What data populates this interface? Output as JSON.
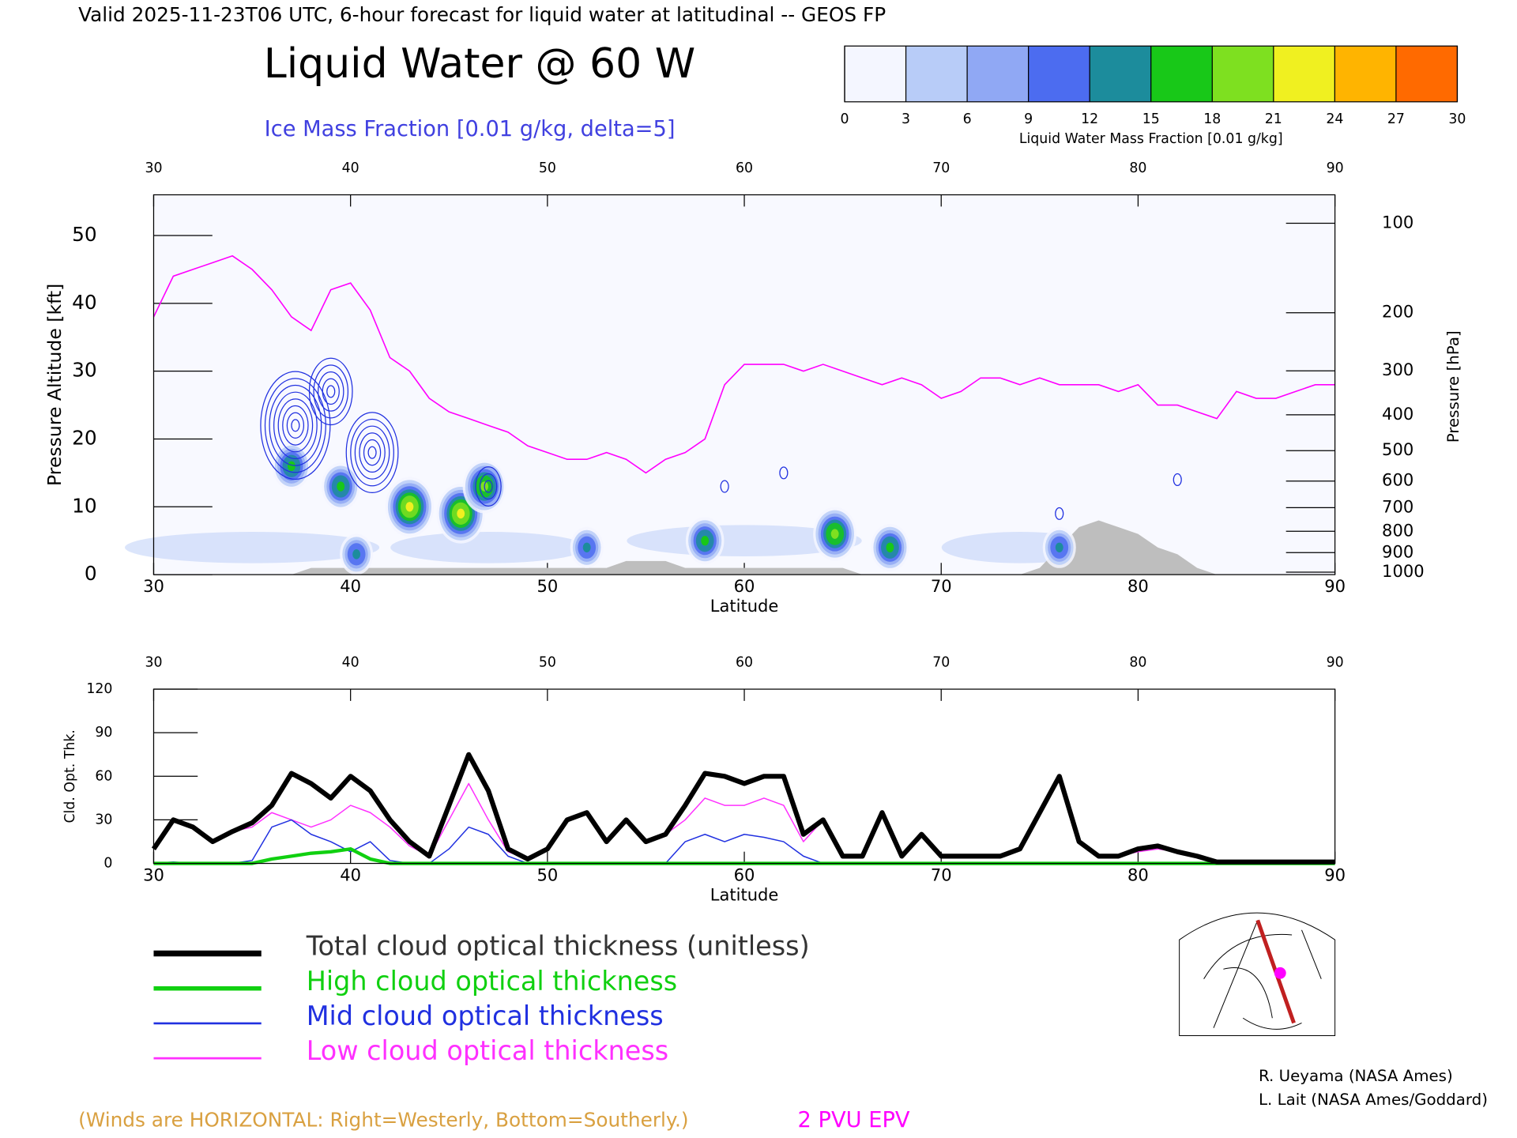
{
  "header": {
    "valid": "Valid 2025-11-23T06 UTC, 6-hour forecast for liquid water at latitudinal -- GEOS FP",
    "title": "Liquid Water @ 60 W",
    "subtitle": "Ice Mass Fraction [0.01 g/kg, delta=5]"
  },
  "chart_data": [
    {
      "type": "contour",
      "xlabel": "Latitude",
      "ylabel": "Pressure Altitude [kft]",
      "y2label": "Pressure [hPa]",
      "xlim": [
        30,
        90
      ],
      "xticks": [
        30,
        40,
        50,
        60,
        70,
        80,
        90
      ],
      "ylim": [
        0,
        56
      ],
      "yticks": [
        0,
        10,
        20,
        30,
        40,
        50
      ],
      "y2_scale": "pressure-altitude",
      "y2ticks": [
        100,
        200,
        300,
        400,
        500,
        600,
        700,
        800,
        900,
        1000
      ],
      "colorbar": {
        "label": "Liquid Water Mass Fraction [0.01 g/kg]",
        "ticks": [
          0,
          3,
          6,
          9,
          12,
          15,
          18,
          21,
          24,
          27,
          30
        ],
        "colors": [
          "#f4f6ff",
          "#b8ccf8",
          "#90a8f4",
          "#4c6cf0",
          "#1c8c9c",
          "#18c818",
          "#7ee020",
          "#f0f020",
          "#ffb400",
          "#ff6a00"
        ]
      },
      "liquid_water": [
        {
          "lat": 37,
          "alt": 16,
          "value": 15
        },
        {
          "lat": 39.5,
          "alt": 13,
          "value": 15
        },
        {
          "lat": 43,
          "alt": 10,
          "value": 21
        },
        {
          "lat": 45.6,
          "alt": 9,
          "value": 21
        },
        {
          "lat": 46.8,
          "alt": 13,
          "value": 18
        },
        {
          "lat": 40.3,
          "alt": 3,
          "value": 12
        },
        {
          "lat": 58,
          "alt": 5,
          "value": 15
        },
        {
          "lat": 64.6,
          "alt": 6,
          "value": 18
        },
        {
          "lat": 67.4,
          "alt": 4,
          "value": 16
        },
        {
          "lat": 52,
          "alt": 4,
          "value": 12
        },
        {
          "lat": 76,
          "alt": 4,
          "value": 12
        }
      ],
      "ice_contours": {
        "color": "#2030e0",
        "delta": 5,
        "maxima": [
          {
            "lat": 37.2,
            "alt": 22,
            "value": 40
          },
          {
            "lat": 39,
            "alt": 27,
            "value": 25
          },
          {
            "lat": 41.1,
            "alt": 18,
            "value": 30
          },
          {
            "lat": 47,
            "alt": 13,
            "value": 15
          },
          {
            "lat": 59,
            "alt": 13,
            "value": 5
          },
          {
            "lat": 62,
            "alt": 15,
            "value": 5
          },
          {
            "lat": 82,
            "alt": 14,
            "value": 5
          },
          {
            "lat": 76,
            "alt": 9,
            "value": 5
          }
        ]
      },
      "x": [
        30,
        31,
        32,
        33,
        34,
        35,
        36,
        37,
        38,
        39,
        40,
        41,
        42,
        43,
        44,
        45,
        46,
        47,
        48,
        49,
        50,
        51,
        52,
        53,
        54,
        55,
        56,
        57,
        58,
        59,
        60,
        61,
        62,
        63,
        64,
        65,
        66,
        67,
        68,
        69,
        70,
        71,
        72,
        73,
        74,
        75,
        76,
        77,
        78,
        79,
        80,
        81,
        82,
        83,
        84,
        85,
        86,
        87,
        88,
        89,
        90
      ],
      "terrain": {
        "color": "#bebebe",
        "values": [
          0,
          0,
          0,
          0,
          0,
          0,
          0,
          0,
          1,
          1,
          1,
          1,
          1,
          1,
          1,
          1,
          1,
          1,
          1,
          1,
          1,
          1,
          1,
          1,
          2,
          2,
          2,
          1,
          1,
          1,
          1,
          1,
          1,
          1,
          1,
          1,
          0,
          0,
          0,
          0,
          0,
          0,
          0,
          0,
          0,
          1,
          4,
          7,
          8,
          7,
          6,
          4,
          3,
          1,
          0,
          0,
          0,
          0,
          0,
          0,
          0
        ]
      },
      "series": [
        {
          "name": "2 PVU EPV",
          "color": "#ff00ff",
          "values": [
            38,
            44,
            45,
            46,
            47,
            45,
            42,
            38,
            36,
            42,
            43,
            39,
            32,
            30,
            26,
            24,
            23,
            22,
            21,
            19,
            18,
            17,
            17,
            18,
            17,
            15,
            17,
            18,
            20,
            28,
            31,
            31,
            31,
            30,
            31,
            30,
            29,
            28,
            29,
            28,
            26,
            27,
            29,
            29,
            28,
            29,
            28,
            28,
            28,
            27,
            28,
            25,
            25,
            24,
            23,
            27,
            26,
            26,
            27,
            28,
            28
          ]
        }
      ]
    },
    {
      "type": "line",
      "xlabel": "Latitude",
      "ylabel": "Cld. Opt. Thk.",
      "xlim": [
        30,
        90
      ],
      "xticks": [
        30,
        40,
        50,
        60,
        70,
        80,
        90
      ],
      "ylim": [
        0,
        120
      ],
      "yticks": [
        0,
        30,
        60,
        90,
        120
      ],
      "x": [
        30,
        31,
        32,
        33,
        34,
        35,
        36,
        37,
        38,
        39,
        40,
        41,
        42,
        43,
        44,
        45,
        46,
        47,
        48,
        49,
        50,
        51,
        52,
        53,
        54,
        55,
        56,
        57,
        58,
        59,
        60,
        61,
        62,
        63,
        64,
        65,
        66,
        67,
        68,
        69,
        70,
        71,
        72,
        73,
        74,
        75,
        76,
        77,
        78,
        79,
        80,
        81,
        82,
        83,
        84,
        85,
        86,
        87,
        88,
        89,
        90
      ],
      "series": [
        {
          "name": "Total cloud optical thickness (unitless)",
          "color": "#000000",
          "width": 5,
          "values": [
            10,
            30,
            25,
            15,
            22,
            28,
            40,
            62,
            55,
            45,
            60,
            50,
            30,
            15,
            5,
            40,
            75,
            50,
            10,
            3,
            10,
            30,
            35,
            15,
            30,
            15,
            20,
            40,
            62,
            60,
            55,
            60,
            60,
            20,
            30,
            5,
            5,
            35,
            5,
            20,
            5,
            5,
            5,
            5,
            10,
            35,
            60,
            15,
            5,
            5,
            10,
            12,
            8,
            5,
            1,
            1,
            1,
            1,
            1,
            1,
            1
          ]
        },
        {
          "name": "High cloud optical thickness",
          "color": "#10d010",
          "width": 3.5,
          "values": [
            0,
            0,
            0,
            0,
            0,
            0,
            3,
            5,
            7,
            8,
            10,
            3,
            0,
            0,
            0,
            0,
            0,
            0,
            0,
            0,
            0,
            0,
            0,
            0,
            0,
            0,
            0,
            0,
            0,
            0,
            0,
            0,
            0,
            0,
            0,
            0,
            0,
            0,
            0,
            0,
            0,
            0,
            0,
            0,
            0,
            0,
            0,
            0,
            0,
            0,
            0,
            0,
            0,
            0,
            0,
            0,
            0,
            0,
            0,
            0,
            0
          ]
        },
        {
          "name": "Mid cloud optical thickness",
          "color": "#2030e0",
          "width": 1.2,
          "values": [
            0,
            1,
            0,
            0,
            0,
            2,
            25,
            30,
            20,
            15,
            8,
            15,
            2,
            0,
            0,
            10,
            25,
            20,
            5,
            0,
            0,
            0,
            0,
            0,
            0,
            0,
            0,
            15,
            20,
            15,
            20,
            18,
            15,
            5,
            0,
            0,
            0,
            0,
            0,
            0,
            0,
            0,
            0,
            0,
            0,
            0,
            0,
            0,
            0,
            0,
            0,
            0,
            0,
            0,
            0,
            0,
            0,
            0,
            0,
            0,
            0
          ]
        },
        {
          "name": "Low cloud optical thickness",
          "color": "#ff30ff",
          "width": 1.2,
          "values": [
            10,
            30,
            25,
            15,
            22,
            25,
            35,
            30,
            25,
            30,
            40,
            35,
            25,
            12,
            5,
            30,
            55,
            30,
            8,
            3,
            10,
            30,
            35,
            15,
            30,
            15,
            20,
            30,
            45,
            40,
            40,
            45,
            40,
            15,
            30,
            5,
            5,
            35,
            5,
            20,
            5,
            5,
            5,
            5,
            10,
            35,
            60,
            15,
            5,
            5,
            8,
            10,
            8,
            4,
            1,
            1,
            1,
            1,
            1,
            1,
            1
          ]
        }
      ]
    }
  ],
  "notes": {
    "winds": "(Winds are HORIZONTAL: Right=Westerly, Bottom=Southerly.)",
    "credit1": "R. Ueyama (NASA Ames)",
    "credit2": "L. Lait (NASA Ames/Goddard)"
  }
}
